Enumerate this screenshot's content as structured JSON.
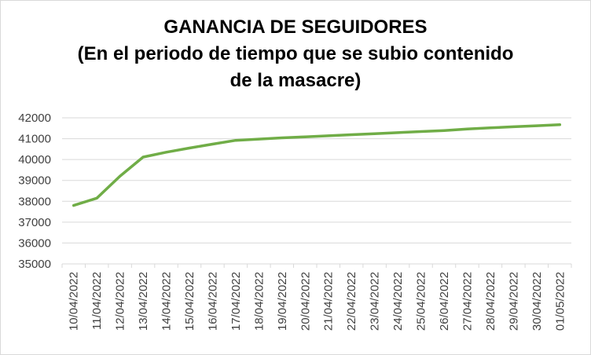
{
  "chart_data": {
    "type": "line",
    "title_lines": [
      "GANANCIA DE SEGUIDORES",
      "(En el periodo de tiempo que se subio contenido",
      "de la masacre)"
    ],
    "categories": [
      "10/04/2022",
      "11/04/2022",
      "12/04/2022",
      "13/04/2022",
      "14/04/2022",
      "15/04/2022",
      "16/04/2022",
      "17/04/2022",
      "18/04/2022",
      "19/04/2022",
      "20/04/2022",
      "21/04/2022",
      "22/04/2022",
      "23/04/2022",
      "24/04/2022",
      "25/04/2022",
      "26/04/2022",
      "27/04/2022",
      "28/04/2022",
      "29/04/2022",
      "30/04/2022",
      "01/05/2022"
    ],
    "values": [
      37800,
      38150,
      39200,
      40120,
      40350,
      40550,
      40740,
      40920,
      40980,
      41040,
      41090,
      41140,
      41190,
      41240,
      41290,
      41340,
      41390,
      41460,
      41520,
      41570,
      41620,
      41670
    ],
    "ylim": [
      35000,
      42000
    ],
    "yticks": [
      35000,
      36000,
      37000,
      38000,
      39000,
      40000,
      41000,
      42000
    ],
    "grid": true,
    "legend": "none",
    "line_color": "#70ad47",
    "grid_color": "#d9d9d9"
  }
}
